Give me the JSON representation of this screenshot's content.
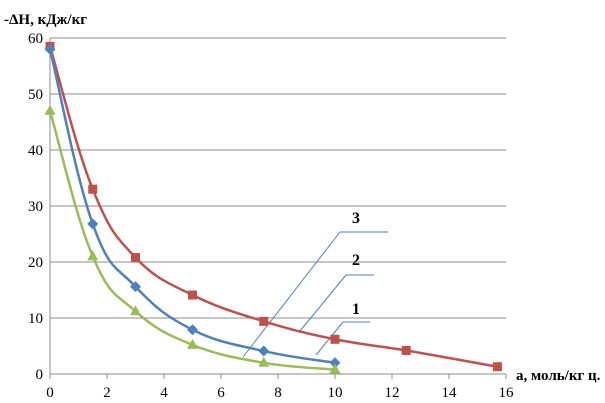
{
  "chart_data": {
    "type": "line",
    "ylabel": "-ΔH, кДж/кг",
    "xlabel": "a, моль/кг ц.",
    "xlim": [
      0,
      16
    ],
    "ylim": [
      0,
      60
    ],
    "x_ticks": [
      "0",
      "2",
      "4",
      "6",
      "8",
      "10",
      "12",
      "14",
      "16"
    ],
    "y_ticks": [
      "0",
      "10",
      "20",
      "30",
      "40",
      "50",
      "60"
    ],
    "grid": true,
    "series": [
      {
        "name": "1",
        "color": "#9bbb59",
        "marker": "triangle",
        "points": [
          [
            0,
            47
          ],
          [
            1.5,
            21
          ],
          [
            3,
            11.2
          ],
          [
            5,
            5.2
          ],
          [
            7.5,
            2
          ],
          [
            10,
            0.8
          ]
        ]
      },
      {
        "name": "2",
        "color": "#4f81bd",
        "marker": "diamond",
        "points": [
          [
            0,
            58
          ],
          [
            1.5,
            26.8
          ],
          [
            3,
            15.6
          ],
          [
            5,
            7.9
          ],
          [
            7.5,
            4.1
          ],
          [
            10,
            2
          ]
        ]
      },
      {
        "name": "3",
        "color": "#c0504d",
        "marker": "square",
        "points": [
          [
            0,
            58.5
          ],
          [
            1.5,
            33
          ],
          [
            3,
            20.8
          ],
          [
            5,
            14.1
          ],
          [
            7.5,
            9.4
          ],
          [
            10,
            6.2
          ],
          [
            12.5,
            4.2
          ],
          [
            15.7,
            1.3
          ]
        ]
      }
    ]
  }
}
